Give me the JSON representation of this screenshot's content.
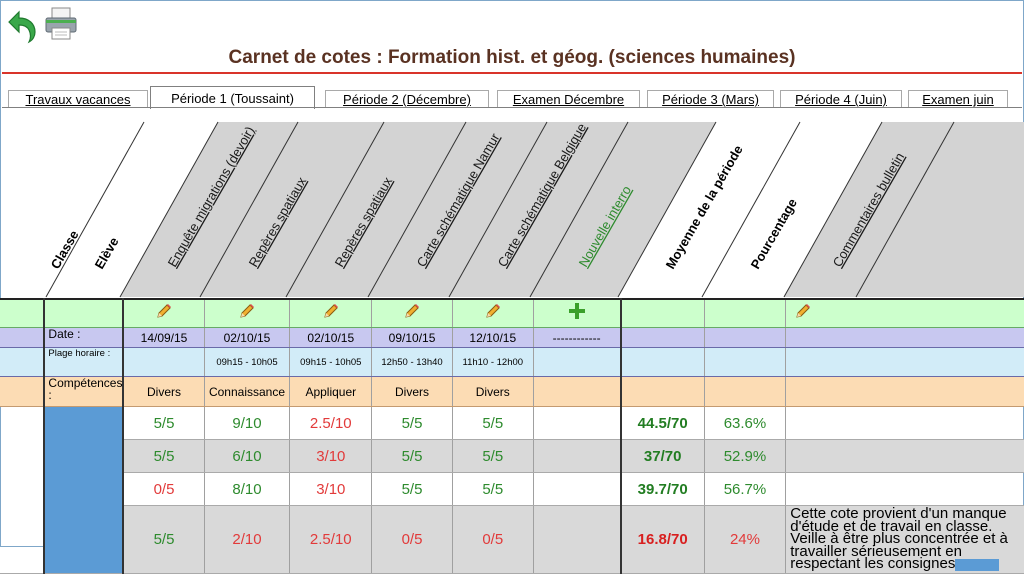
{
  "window": {
    "title": "Carnet de cotes : Formation hist. et géog. (sciences humaines)"
  },
  "toolbar": {
    "back_icon": "back-arrow-icon",
    "print_icon": "printer-icon"
  },
  "tabs": [
    {
      "label": "Travaux vacances",
      "active": false
    },
    {
      "label": "Période 1 (Toussaint)",
      "active": true
    },
    {
      "label": "Période 2 (Décembre)",
      "active": false
    },
    {
      "label": "Examen Décembre",
      "active": false
    },
    {
      "label": "Période 3 (Mars)",
      "active": false
    },
    {
      "label": "Période 4 (Juin)",
      "active": false
    },
    {
      "label": "Examen juin",
      "active": false
    }
  ],
  "headers": {
    "classe": "Classe",
    "eleve": "Elève",
    "evaluations": [
      "Enquête migrations (devoir)",
      "Repères spatiaux",
      "Repères spatiaux",
      "Carte schématique Namur",
      "Carte schématique Belgique",
      "Nouvelle interro"
    ],
    "moyenne": "Moyenne de la période",
    "pourcentage": "Pourcentage",
    "commentaires": "Commentaires bulletin"
  },
  "rows": {
    "date_label": "Date :",
    "plage_label": "Plage horaire :",
    "competences_label": "Compétences :",
    "dates": [
      "14/09/15",
      "02/10/15",
      "02/10/15",
      "09/10/15",
      "12/10/15",
      "------------"
    ],
    "plages": [
      "",
      "09h15 - 10h05",
      "09h15 - 10h05",
      "12h50 - 13h40",
      "11h10 - 12h00",
      ""
    ],
    "competences": [
      "Divers",
      "Connaissance",
      "Appliquer",
      "Divers",
      "Divers",
      ""
    ]
  },
  "students": [
    {
      "scores": [
        "5/5",
        "9/10",
        "2.5/10",
        "5/5",
        "5/5"
      ],
      "moyenne": "44.5/70",
      "pourcentage": "63.6%",
      "comment": ""
    },
    {
      "scores": [
        "5/5",
        "6/10",
        "3/10",
        "5/5",
        "5/5"
      ],
      "moyenne": "37/70",
      "pourcentage": "52.9%",
      "comment": ""
    },
    {
      "scores": [
        "0/5",
        "8/10",
        "3/10",
        "5/5",
        "5/5"
      ],
      "moyenne": "39.7/70",
      "pourcentage": "56.7%",
      "comment": ""
    },
    {
      "scores": [
        "5/5",
        "2/10",
        "2.5/10",
        "0/5",
        "0/5"
      ],
      "moyenne": "16.8/70",
      "pourcentage": "24%",
      "comment": "Cette cote provient d'un manque d'étude et de travail en classe. Veille à être plus concentrée et à travailler sérieusement en respectant les consignes"
    }
  ],
  "colors": {
    "title": "#5a3222",
    "title_rule": "#d9342a",
    "pass_green": "#2e8b2e",
    "fail_red": "#e23a3a",
    "edit_row": "#ccffcc",
    "date_row": "#c8c8f0",
    "plage_row": "#d2ecf8",
    "competences_row": "#fcdcb4",
    "student_block": "#5b9bd5",
    "header_gray": "#d3d3d3"
  }
}
